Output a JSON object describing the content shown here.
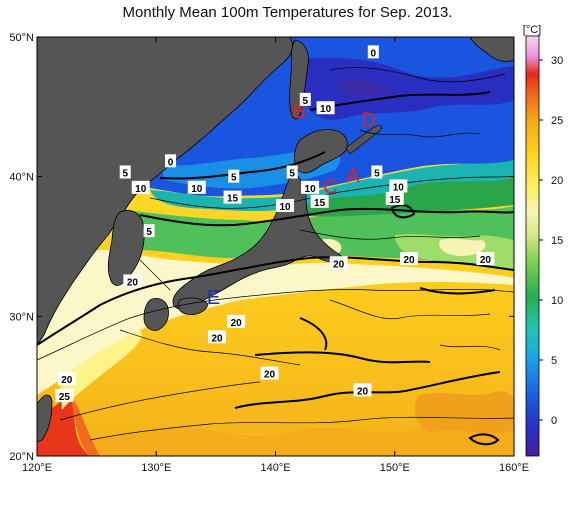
{
  "title": "Monthly Mean 100m Temperatures for Sep. 2013.",
  "colorbar": {
    "unit": "[°C]",
    "ticks": [
      "30",
      "25",
      "20",
      "15",
      "10",
      "5",
      "0"
    ],
    "tick_values": [
      30,
      25,
      20,
      15,
      10,
      5,
      0
    ],
    "range": [
      -3,
      32
    ]
  },
  "axes": {
    "x_ticks": [
      "120°E",
      "130°E",
      "140°E",
      "150°E",
      "160°E"
    ],
    "x_values": [
      120,
      130,
      140,
      150,
      160
    ],
    "y_ticks": [
      "50°N",
      "40°N",
      "30°N",
      "20°N"
    ],
    "y_values": [
      50,
      40,
      30,
      20
    ]
  },
  "region_labels": [
    {
      "text": "A",
      "lon": 146.5,
      "lat": 39.6,
      "color": "#e8201c"
    },
    {
      "text": "B",
      "lon": 142.0,
      "lat": 44.2,
      "color": "#e8201c"
    },
    {
      "text": "C",
      "lon": 144.6,
      "lat": 38.8,
      "color": "#e8201c"
    },
    {
      "text": "D",
      "lon": 147.8,
      "lat": 43.6,
      "color": "#e8201c"
    },
    {
      "text": "E",
      "lon": 134.8,
      "lat": 30.9,
      "color": "#1b2bd0"
    }
  ],
  "contour_labels": [
    {
      "text": "0",
      "lon": 148.2,
      "lat": 48.9
    },
    {
      "text": "5",
      "lon": 142.5,
      "lat": 45.5
    },
    {
      "text": "10",
      "lon": 144.2,
      "lat": 44.9
    },
    {
      "text": "0",
      "lon": 131.2,
      "lat": 41.1
    },
    {
      "text": "5",
      "lon": 127.4,
      "lat": 40.3
    },
    {
      "text": "10",
      "lon": 128.7,
      "lat": 39.2
    },
    {
      "text": "10",
      "lon": 133.4,
      "lat": 39.2
    },
    {
      "text": "5",
      "lon": 136.5,
      "lat": 40.0
    },
    {
      "text": "15",
      "lon": 136.4,
      "lat": 38.5
    },
    {
      "text": "5",
      "lon": 141.4,
      "lat": 40.3
    },
    {
      "text": "10",
      "lon": 142.9,
      "lat": 39.2
    },
    {
      "text": "10",
      "lon": 140.8,
      "lat": 37.9
    },
    {
      "text": "15",
      "lon": 143.7,
      "lat": 38.2
    },
    {
      "text": "5",
      "lon": 148.5,
      "lat": 40.3
    },
    {
      "text": "10",
      "lon": 150.3,
      "lat": 39.3
    },
    {
      "text": "15",
      "lon": 150.0,
      "lat": 38.4
    },
    {
      "text": "5",
      "lon": 129.4,
      "lat": 36.1
    },
    {
      "text": "20",
      "lon": 128.0,
      "lat": 32.5
    },
    {
      "text": "20",
      "lon": 145.3,
      "lat": 33.8
    },
    {
      "text": "20",
      "lon": 151.2,
      "lat": 34.1
    },
    {
      "text": "20",
      "lon": 157.6,
      "lat": 34.1
    },
    {
      "text": "20",
      "lon": 135.1,
      "lat": 28.5
    },
    {
      "text": "20",
      "lon": 136.7,
      "lat": 29.6
    },
    {
      "text": "20",
      "lon": 139.5,
      "lat": 25.9
    },
    {
      "text": "20",
      "lon": 147.3,
      "lat": 24.7
    },
    {
      "text": "20",
      "lon": 122.5,
      "lat": 25.5
    },
    {
      "text": "25",
      "lon": 122.3,
      "lat": 24.3
    }
  ]
}
